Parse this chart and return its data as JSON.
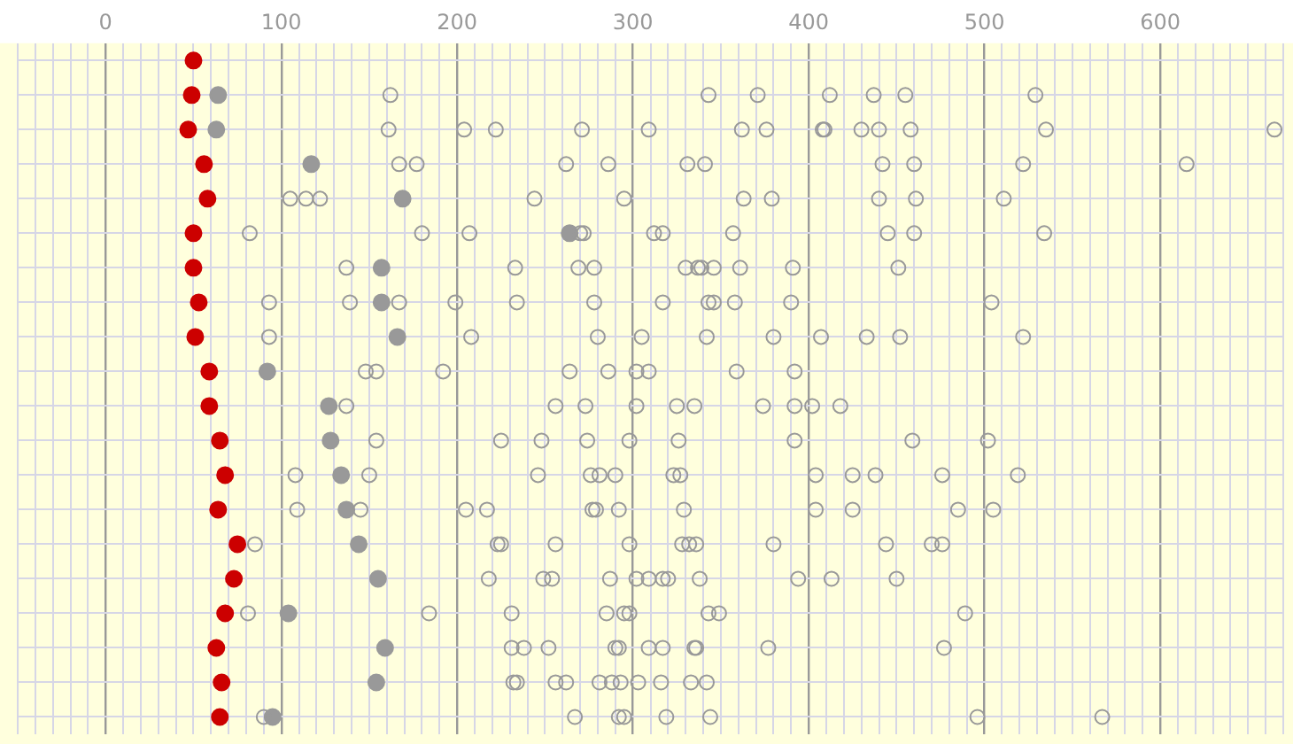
{
  "chart_data": {
    "type": "scatter",
    "orientation": "horizontal",
    "xlim": [
      -50,
      670
    ],
    "grid": true,
    "tick_labels": "x",
    "marker": "circle",
    "categories": [
      null,
      null,
      null,
      null,
      null,
      null,
      null,
      null,
      null,
      null,
      null,
      null,
      null,
      null,
      null,
      null,
      null,
      null,
      null,
      null
    ],
    "xticks": [
      {
        "value": -50,
        "label": null
      },
      {
        "value": -40,
        "label": null
      },
      {
        "value": -30,
        "label": null
      },
      {
        "value": -20,
        "label": null
      },
      {
        "value": -10,
        "label": null
      },
      0,
      {
        "value": 10,
        "label": null
      },
      {
        "value": 20,
        "label": null
      },
      {
        "value": 30,
        "label": null
      },
      {
        "value": 40,
        "label": null
      },
      {
        "value": 50,
        "label": null
      },
      {
        "value": 60,
        "label": null
      },
      {
        "value": 70,
        "label": null
      },
      {
        "value": 80,
        "label": null
      },
      {
        "value": 90,
        "label": null
      },
      100,
      {
        "value": 110,
        "label": null
      },
      {
        "value": 120,
        "label": null
      },
      {
        "value": 130,
        "label": null
      },
      {
        "value": 140,
        "label": null
      },
      {
        "value": 150,
        "label": null
      },
      {
        "value": 160,
        "label": null
      },
      {
        "value": 170,
        "label": null
      },
      {
        "value": 180,
        "label": null
      },
      {
        "value": 190,
        "label": null
      },
      200,
      {
        "value": 210,
        "label": null
      },
      {
        "value": 220,
        "label": null
      },
      {
        "value": 230,
        "label": null
      },
      {
        "value": 240,
        "label": null
      },
      {
        "value": 250,
        "label": null
      },
      {
        "value": 260,
        "label": null
      },
      {
        "value": 270,
        "label": null
      },
      {
        "value": 280,
        "label": null
      },
      {
        "value": 290,
        "label": null
      },
      300,
      {
        "value": 310,
        "label": null
      },
      {
        "value": 320,
        "label": null
      },
      {
        "value": 330,
        "label": null
      },
      {
        "value": 340,
        "label": null
      },
      {
        "value": 350,
        "label": null
      },
      {
        "value": 360,
        "label": null
      },
      {
        "value": 370,
        "label": null
      },
      {
        "value": 380,
        "label": null
      },
      {
        "value": 390,
        "label": null
      },
      400,
      {
        "value": 410,
        "label": null
      },
      {
        "value": 420,
        "label": null
      },
      {
        "value": 430,
        "label": null
      },
      {
        "value": 440,
        "label": null
      },
      {
        "value": 450,
        "label": null
      },
      {
        "value": 460,
        "label": null
      },
      {
        "value": 470,
        "label": null
      },
      {
        "value": 480,
        "label": null
      },
      {
        "value": 490,
        "label": null
      },
      500,
      {
        "value": 510,
        "label": null
      },
      {
        "value": 520,
        "label": null
      },
      {
        "value": 530,
        "label": null
      },
      {
        "value": 540,
        "label": null
      },
      {
        "value": 550,
        "label": null
      },
      {
        "value": 560,
        "label": null
      },
      {
        "value": 570,
        "label": null
      },
      {
        "value": 580,
        "label": null
      },
      {
        "value": 590,
        "label": null
      },
      600,
      {
        "value": 610,
        "label": null
      },
      {
        "value": 620,
        "label": null
      },
      {
        "value": 630,
        "label": null
      },
      {
        "value": 640,
        "label": null
      },
      {
        "value": 650,
        "label": null
      },
      {
        "value": 660,
        "label": null
      },
      {
        "value": 670,
        "label": null
      }
    ],
    "series": [
      {
        "color": "#cc0000",
        "values": [
          50,
          49,
          47,
          56,
          58,
          50,
          50,
          53,
          51,
          59,
          59,
          65,
          68,
          64,
          75,
          73,
          68,
          63,
          66,
          65
        ]
      },
      {
        "color": "#999999",
        "values": [
          null,
          64,
          63,
          117,
          169,
          264,
          157,
          157,
          166,
          92,
          127,
          128,
          134,
          137,
          144,
          155,
          104,
          159,
          154,
          95
        ]
      },
      {
        "color": "#999999",
        "values": [
          null,
          162,
          161,
          167,
          105,
          82,
          137,
          93,
          93,
          148,
          137,
          154,
          108,
          109,
          85,
          218,
          81,
          231,
          232,
          90
        ]
      },
      {
        "color": "#999999",
        "values": [
          null,
          343,
          204,
          177,
          114,
          180,
          233,
          139,
          208,
          154,
          256,
          225,
          150,
          145,
          223,
          249,
          184,
          238,
          234,
          267
        ]
      },
      {
        "color": "#999999",
        "values": [
          null,
          371,
          222,
          262,
          122,
          207,
          269,
          167,
          280,
          192,
          273,
          248,
          246,
          205,
          225,
          254,
          231,
          252,
          256,
          292
        ]
      },
      {
        "color": "#999999",
        "values": [
          null,
          412,
          271,
          286,
          244,
          270,
          278,
          199,
          305,
          264,
          302,
          274,
          276,
          217,
          256,
          287,
          285,
          290,
          262,
          295
        ]
      },
      {
        "color": "#999999",
        "values": [
          null,
          437,
          309,
          331,
          295,
          272,
          330,
          234,
          342,
          286,
          325,
          298,
          281,
          277,
          298,
          302,
          295,
          292,
          281,
          319
        ]
      },
      {
        "color": "#999999",
        "values": [
          null,
          455,
          362,
          341,
          363,
          312,
          337,
          278,
          380,
          302,
          335,
          326,
          290,
          279,
          328,
          309,
          298,
          309,
          288,
          344
        ]
      },
      {
        "color": "#999999",
        "values": [
          null,
          529,
          376,
          442,
          379,
          317,
          339,
          317,
          407,
          309,
          374,
          392,
          323,
          292,
          332,
          317,
          343,
          317,
          293,
          496
        ]
      },
      {
        "color": "#999999",
        "values": [
          null,
          null,
          408,
          460,
          440,
          357,
          346,
          343,
          433,
          359,
          392,
          459,
          327,
          329,
          336,
          320,
          349,
          335,
          303,
          567
        ]
      },
      {
        "color": "#999999",
        "values": [
          null,
          null,
          409,
          522,
          461,
          445,
          361,
          346,
          452,
          392,
          402,
          502,
          404,
          404,
          380,
          338,
          489,
          336,
          316,
          null
        ]
      },
      {
        "color": "#999999",
        "values": [
          null,
          null,
          430,
          615,
          511,
          460,
          391,
          358,
          522,
          null,
          418,
          null,
          425,
          425,
          444,
          394,
          null,
          377,
          333,
          null
        ]
      },
      {
        "color": "#999999",
        "values": [
          null,
          null,
          440,
          null,
          null,
          534,
          451,
          390,
          null,
          null,
          null,
          null,
          438,
          485,
          470,
          413,
          null,
          477,
          342,
          null
        ]
      },
      {
        "color": "#999999",
        "values": [
          null,
          null,
          458,
          null,
          null,
          null,
          null,
          504,
          null,
          null,
          null,
          null,
          476,
          505,
          476,
          450,
          null,
          null,
          null,
          null
        ]
      },
      {
        "color": "#999999",
        "values": [
          null,
          null,
          535,
          null,
          null,
          null,
          null,
          null,
          null,
          null,
          null,
          null,
          519,
          null,
          null,
          null,
          null,
          null,
          null,
          null
        ]
      },
      {
        "color": "#999999",
        "values": [
          null,
          null,
          665,
          null,
          null,
          null,
          null,
          null,
          null,
          null,
          null,
          null,
          null,
          null,
          null,
          null,
          null,
          null,
          null,
          null
        ]
      }
    ]
  }
}
